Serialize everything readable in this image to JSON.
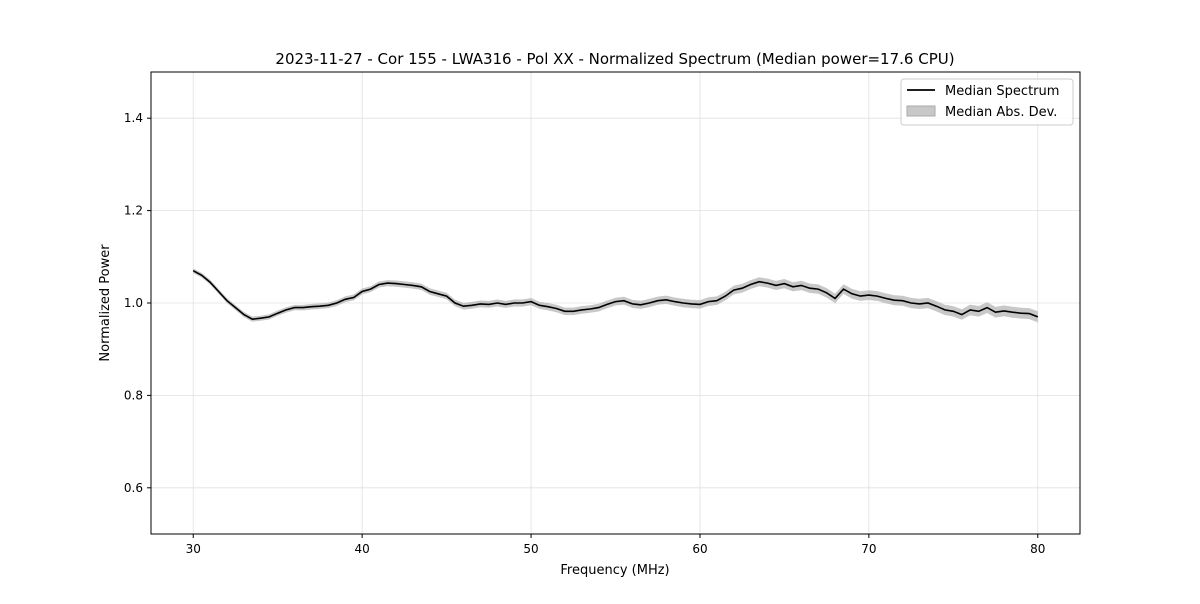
{
  "chart_data": {
    "type": "line",
    "title": "2023-11-27 - Cor 155 - LWA316 - Pol XX - Normalized Spectrum (Median power=17.6 CPU)",
    "xlabel": "Frequency (MHz)",
    "ylabel": "Normalized Power",
    "xlim": [
      27.5,
      82.5
    ],
    "ylim": [
      0.5,
      1.5
    ],
    "xticks": [
      30,
      40,
      50,
      60,
      70,
      80
    ],
    "xtick_labels": [
      "30",
      "40",
      "50",
      "60",
      "70",
      "80"
    ],
    "yticks": [
      0.6,
      0.8,
      1.0,
      1.2,
      1.4
    ],
    "ytick_labels": [
      "0.6",
      "0.8",
      "1.0",
      "1.2",
      "1.4"
    ],
    "grid": true,
    "legend": {
      "placement": "top-right",
      "entries": [
        "Median Spectrum",
        "Median Abs. Dev."
      ]
    },
    "colors": {
      "line": "#000000",
      "band": "#b0b0b0",
      "grid": "#e0e0e0"
    },
    "series": [
      {
        "name": "Median Spectrum",
        "x_start": 30,
        "x_step": 0.5,
        "values": [
          1.07,
          1.06,
          1.045,
          1.025,
          1.005,
          0.99,
          0.975,
          0.965,
          0.967,
          0.97,
          0.978,
          0.985,
          0.99,
          0.99,
          0.992,
          0.993,
          0.995,
          1.0,
          1.008,
          1.012,
          1.025,
          1.03,
          1.04,
          1.043,
          1.042,
          1.04,
          1.038,
          1.035,
          1.025,
          1.02,
          1.015,
          1.0,
          0.993,
          0.995,
          0.998,
          0.997,
          1.0,
          0.997,
          1.0,
          1.0,
          1.003,
          0.995,
          0.992,
          0.988,
          0.982,
          0.982,
          0.985,
          0.987,
          0.99,
          0.997,
          1.003,
          1.005,
          0.998,
          0.996,
          1.0,
          1.005,
          1.007,
          1.003,
          1.0,
          0.998,
          0.997,
          1.003,
          1.005,
          1.015,
          1.028,
          1.032,
          1.04,
          1.046,
          1.043,
          1.038,
          1.042,
          1.035,
          1.038,
          1.032,
          1.03,
          1.022,
          1.01,
          1.03,
          1.02,
          1.015,
          1.017,
          1.015,
          1.01,
          1.006,
          1.005,
          1.0,
          0.998,
          1.0,
          0.993,
          0.985,
          0.982,
          0.975,
          0.985,
          0.982,
          0.99,
          0.98,
          0.983,
          0.98,
          0.978,
          0.977,
          0.97
        ]
      },
      {
        "name": "Median Abs. Dev.",
        "mad_range": [
          0.005,
          0.012
        ]
      }
    ]
  }
}
